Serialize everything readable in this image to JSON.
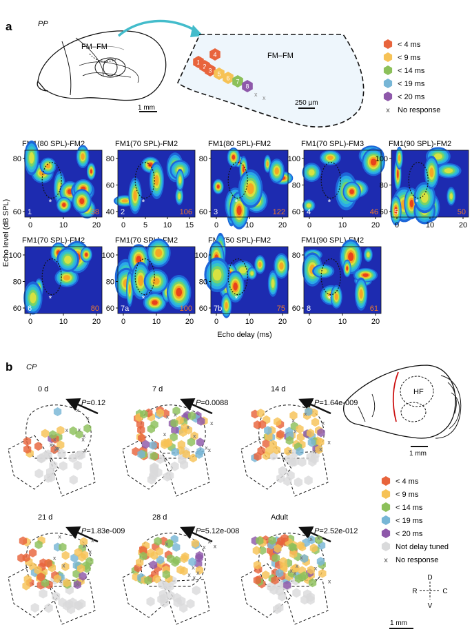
{
  "panel_a": {
    "letter": "a",
    "species": "PP",
    "brain_label": "FM–FM",
    "inset_label": "FM–FM",
    "scale_brain": "1 mm",
    "scale_inset": "250 µm",
    "legend": [
      {
        "label": "< 4 ms",
        "color": "#e8643c"
      },
      {
        "label": "< 9 ms",
        "color": "#f6c256"
      },
      {
        "label": "< 14 ms",
        "color": "#8cc05a"
      },
      {
        "label": "< 19 ms",
        "color": "#77b6d6"
      },
      {
        "label": "< 20 ms",
        "color": "#8e58aa"
      },
      {
        "label": "No response",
        "color": "#888888",
        "marker": "x"
      }
    ],
    "site_hexes": [
      {
        "n": "4",
        "color": "#e8643c"
      },
      {
        "n": "1",
        "color": "#e8643c"
      },
      {
        "n": "2",
        "color": "#e8643c"
      },
      {
        "n": "3",
        "color": "#e8643c"
      },
      {
        "n": "5",
        "color": "#f6c256"
      },
      {
        "n": "6",
        "color": "#f6c256"
      },
      {
        "n": "7",
        "color": "#8cc05a"
      },
      {
        "n": "8",
        "color": "#8e58aa"
      }
    ],
    "ylabel": "Echo level (dB SPL)",
    "xlabel": "Echo delay (ms)",
    "plots": [
      {
        "title": "FM1(80 SPL)-FM2",
        "id": "1",
        "count": "38",
        "xticks": [
          "0",
          "10",
          "20"
        ],
        "yticks": [
          "80",
          "60"
        ]
      },
      {
        "title": "FM1(70 SPL)-FM2",
        "id": "2",
        "count": "106",
        "xticks": [
          "0",
          "5",
          "10",
          "15"
        ],
        "yticks": [
          "80",
          "60",
          "40"
        ]
      },
      {
        "title": "FM1(80 SPL)-FM2",
        "id": "3",
        "count": "122",
        "xticks": [
          "0",
          "10",
          "20"
        ],
        "yticks": [
          "80",
          "60"
        ]
      },
      {
        "title": "FM1(70 SPL)-FM3",
        "id": "4",
        "count": "46",
        "xticks": [
          "0",
          "10",
          "20"
        ],
        "yticks": [
          "100",
          "80",
          "60"
        ]
      },
      {
        "title": "FM1(90 SPL)-FM2",
        "id": "5",
        "count": "50",
        "xticks": [
          "0",
          "10",
          "20"
        ],
        "yticks": [
          "100",
          "80",
          "60"
        ]
      },
      {
        "title": "FM1(70 SPL)-FM2",
        "id": "6",
        "count": "80",
        "xticks": [
          "0",
          "10",
          "20"
        ],
        "yticks": [
          "100",
          "80",
          "60"
        ]
      },
      {
        "title": "FM1(70 SPL)-FM2",
        "id": "7a",
        "count": "100",
        "xticks": [
          "0",
          "10",
          "20"
        ],
        "yticks": [
          "100",
          "80",
          "60"
        ]
      },
      {
        "title": "FM1(50 SPL)-FM2",
        "id": "7b",
        "count": "75",
        "xticks": [
          "0",
          "10",
          "20"
        ],
        "yticks": [
          "100",
          "80",
          "60"
        ]
      },
      {
        "title": "FM1(90 SPL)-FM2",
        "id": "8",
        "count": "61",
        "xticks": [
          "0",
          "10",
          "20"
        ],
        "yticks": [
          "80",
          "60"
        ]
      }
    ]
  },
  "panel_b": {
    "letter": "b",
    "species": "CP",
    "maps": [
      {
        "age": "0 d",
        "p": "=0.12"
      },
      {
        "age": "7 d",
        "p": "=0.0088"
      },
      {
        "age": "14 d",
        "p": "=1.64e-009"
      },
      {
        "age": "21 d",
        "p": "=1.83e-009"
      },
      {
        "age": "28 d",
        "p": "=5.12e-008"
      },
      {
        "age": "Adult",
        "p": "=2.52e-012"
      }
    ],
    "p_prefix": "P",
    "brain_label": "HF",
    "scale_brain": "1 mm",
    "scale_maps": "1 mm",
    "legend": [
      {
        "label": "< 4 ms",
        "color": "#e8643c"
      },
      {
        "label": "< 9 ms",
        "color": "#f6c256"
      },
      {
        "label": "< 14 ms",
        "color": "#8cc05a"
      },
      {
        "label": "< 19 ms",
        "color": "#77b6d6"
      },
      {
        "label": "< 20 ms",
        "color": "#8e58aa"
      },
      {
        "label": "Not delay tuned",
        "color": "#d9dadb"
      },
      {
        "label": "No response",
        "color": "#888888",
        "marker": "x"
      }
    ],
    "compass": {
      "d": "D",
      "v": "V",
      "r": "R",
      "c": "C"
    }
  }
}
